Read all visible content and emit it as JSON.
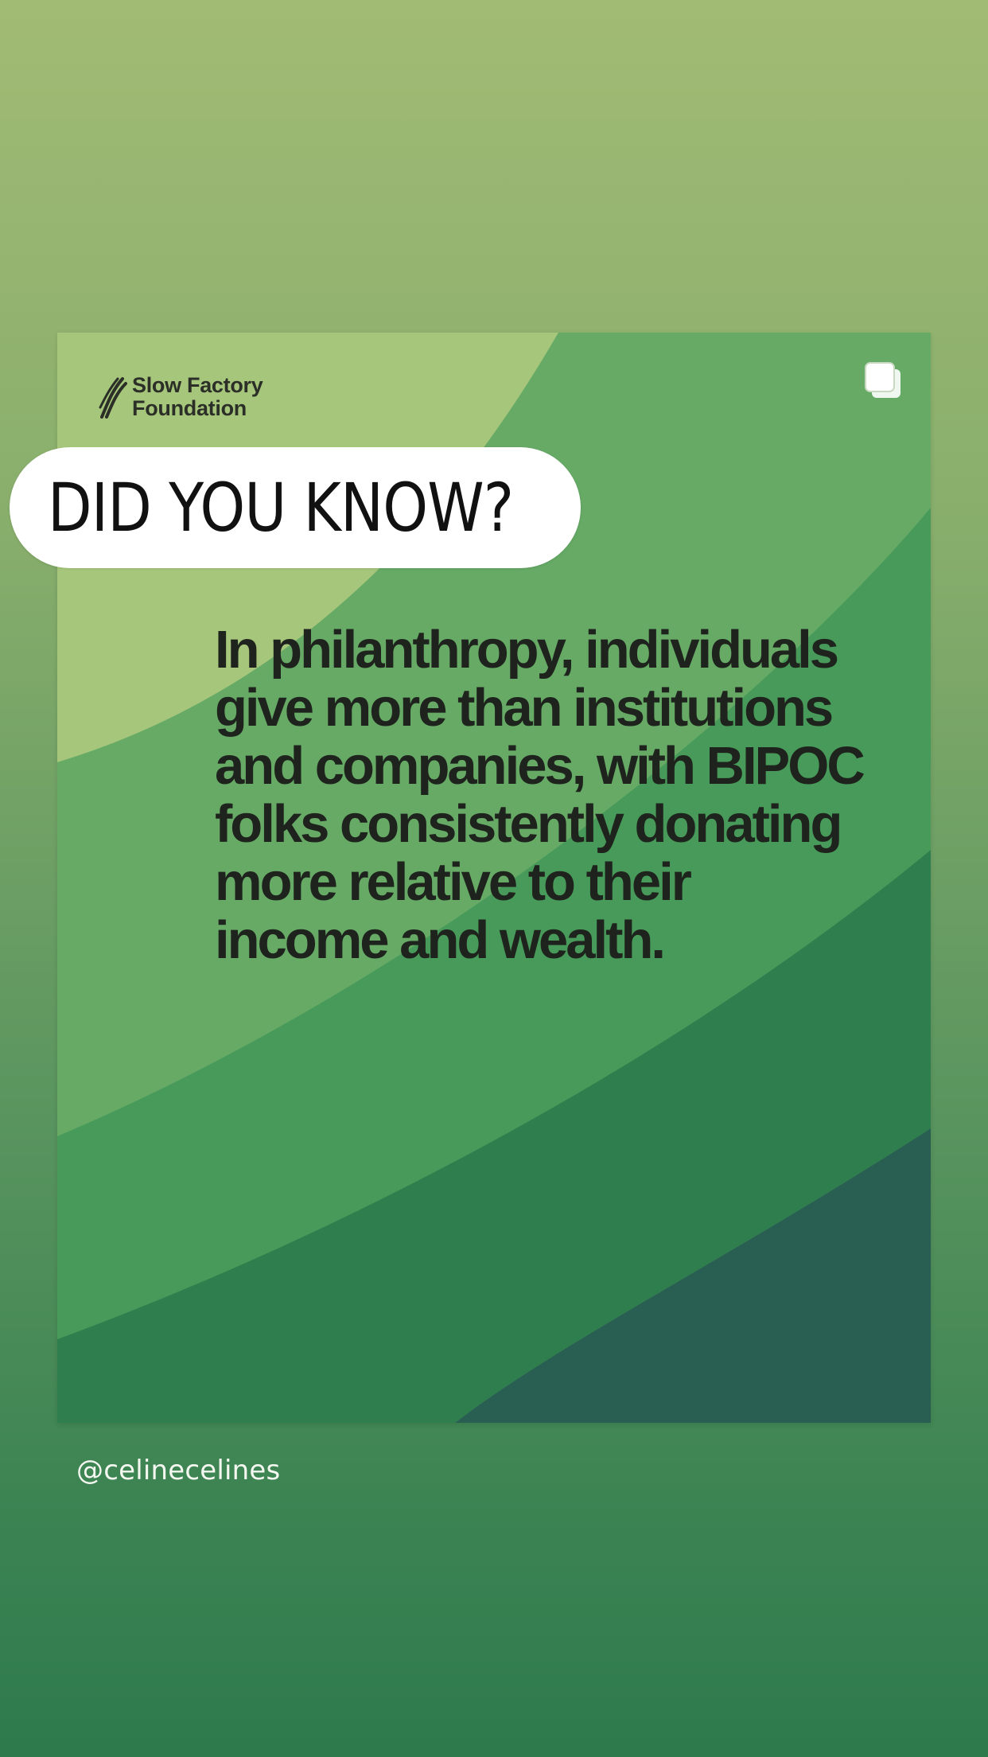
{
  "post": {
    "brand": {
      "line1": "Slow Factory",
      "line2": "Foundation",
      "logo_icon": "slow-factory-logo-icon"
    },
    "multi_image_icon": "multiple-images-icon",
    "headline": "In philanthropy, individuals give more than institutions and companies, with BIPOC folks consistently donating more relative to their income and wealth."
  },
  "sticker": {
    "text": "DID YOU KNOW?"
  },
  "mention": {
    "text": "@celinecelines"
  },
  "colors": {
    "background_top": "#a1bb74",
    "background_bottom": "#2e7a4d",
    "band_light": "#a5c77a",
    "band_mid": "#68ad68",
    "band_dark": "#2c7a4e",
    "band_deep": "#285e52",
    "headline": "#1f231d",
    "sticker_bg": "#ffffff"
  }
}
